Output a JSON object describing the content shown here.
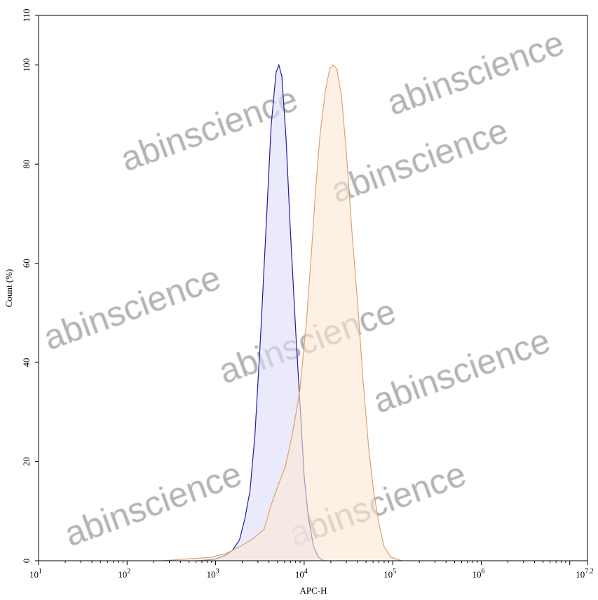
{
  "chart_data": {
    "type": "area",
    "title": "",
    "xlabel": "APC-H",
    "ylabel": "Count (%)",
    "x_scale": "log",
    "xlim": [
      10,
      15848932
    ],
    "ylim": [
      0,
      110
    ],
    "grid": false,
    "x_tick_labels": [
      {
        "base": "10",
        "exp": "1"
      },
      {
        "base": "10",
        "exp": "2"
      },
      {
        "base": "10",
        "exp": "3"
      },
      {
        "base": "10",
        "exp": "4"
      },
      {
        "base": "10",
        "exp": "5"
      },
      {
        "base": "10",
        "exp": "6"
      },
      {
        "base": "10",
        "exp": "7.2"
      }
    ],
    "y_ticks": [
      0,
      20,
      40,
      60,
      80,
      100,
      110
    ],
    "series": [
      {
        "color": "#1c1ca0",
        "fill": "#dcdcf8",
        "x": [
          617,
          980,
          1290,
          1550,
          1860,
          2140,
          2450,
          2780,
          3220,
          3730,
          4240,
          4820,
          5180,
          5590,
          6250,
          6990,
          8090,
          9000,
          10000,
          11200,
          12800,
          14500,
          16700
        ],
        "y": [
          0,
          0.3,
          1.1,
          2.1,
          4.2,
          8.5,
          14.2,
          25.5,
          45.3,
          68.0,
          87.8,
          98.5,
          100,
          97.7,
          85.0,
          66.6,
          45.3,
          31.2,
          17.0,
          8.5,
          2.8,
          0.7,
          0
        ]
      },
      {
        "color": "#e0a070",
        "fill": "#fbe8d4",
        "x": [
          247,
          513,
          890,
          1290,
          1860,
          2680,
          3540,
          4240,
          5180,
          6150,
          7350,
          8880,
          10600,
          12100,
          13500,
          15200,
          17400,
          19400,
          21300,
          23400,
          26500,
          30000,
          35000,
          40500,
          46000,
          53500,
          60600,
          70500,
          80000,
          96000,
          126000
        ],
        "y": [
          0,
          0.4,
          0.7,
          1.4,
          2.8,
          4.5,
          6.4,
          11.3,
          15.6,
          19.1,
          25.5,
          34.0,
          48.2,
          62.3,
          75.1,
          86.4,
          94.9,
          99.2,
          100,
          99.2,
          93.5,
          82.2,
          65.2,
          51.0,
          36.8,
          22.7,
          14.2,
          7.1,
          2.8,
          0.7,
          0
        ]
      }
    ]
  },
  "watermark": "abinscience"
}
